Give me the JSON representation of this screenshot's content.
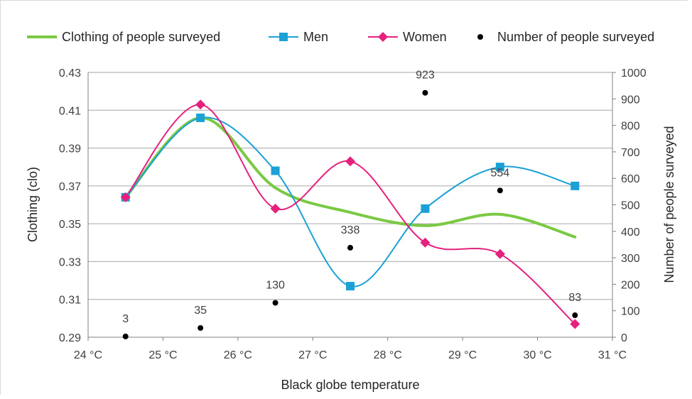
{
  "chart_data": {
    "type": "line",
    "xlabel": "Black globe temperature",
    "ylabel": "Clothing (clo)",
    "y2label": "Number of people surveyed",
    "xlim": [
      24,
      31
    ],
    "ylim": [
      0.29,
      0.43
    ],
    "y2lim": [
      0,
      1000
    ],
    "x_ticks": [
      "24 °C",
      "25 °C",
      "26 °C",
      "27 °C",
      "28 °C",
      "29 °C",
      "30 °C",
      "31 °C"
    ],
    "y_ticks": [
      "0.29",
      "0.31",
      "0.33",
      "0.35",
      "0.37",
      "0.39",
      "0.41",
      "0.43"
    ],
    "y2_ticks": [
      "0",
      "100",
      "200",
      "300",
      "400",
      "500",
      "600",
      "700",
      "800",
      "900",
      "1000"
    ],
    "grid": true,
    "legend_position": "top",
    "series": [
      {
        "name": "Clothing of people surveyed",
        "axis": "left",
        "style": "smooth-line",
        "color": "#7ac943",
        "x": [
          24.5,
          25.5,
          26.5,
          27.5,
          28.5,
          29.5,
          30.5
        ],
        "values": [
          0.364,
          0.406,
          0.369,
          0.356,
          0.349,
          0.355,
          0.343
        ]
      },
      {
        "name": "Men",
        "axis": "left",
        "style": "smooth-line-square",
        "color": "#1ba1d6",
        "x": [
          24.5,
          25.5,
          26.5,
          27.5,
          28.5,
          29.5,
          30.5
        ],
        "values": [
          0.364,
          0.406,
          0.378,
          0.317,
          0.358,
          0.38,
          0.37
        ]
      },
      {
        "name": "Women",
        "axis": "left",
        "style": "smooth-line-diamond",
        "color": "#e6207d",
        "x": [
          24.5,
          25.5,
          26.5,
          27.5,
          28.5,
          29.5,
          30.5
        ],
        "values": [
          0.364,
          0.413,
          0.358,
          0.383,
          0.34,
          0.334,
          0.297
        ]
      },
      {
        "name": "Number of people surveyed",
        "axis": "right",
        "style": "scatter",
        "color": "#000000",
        "x": [
          24.5,
          25.5,
          26.5,
          27.5,
          28.5,
          29.5,
          30.5
        ],
        "values": [
          3,
          35,
          130,
          338,
          923,
          554,
          83
        ],
        "labels": [
          "3",
          "35",
          "130",
          "338",
          "923",
          "554",
          "83"
        ]
      }
    ]
  }
}
